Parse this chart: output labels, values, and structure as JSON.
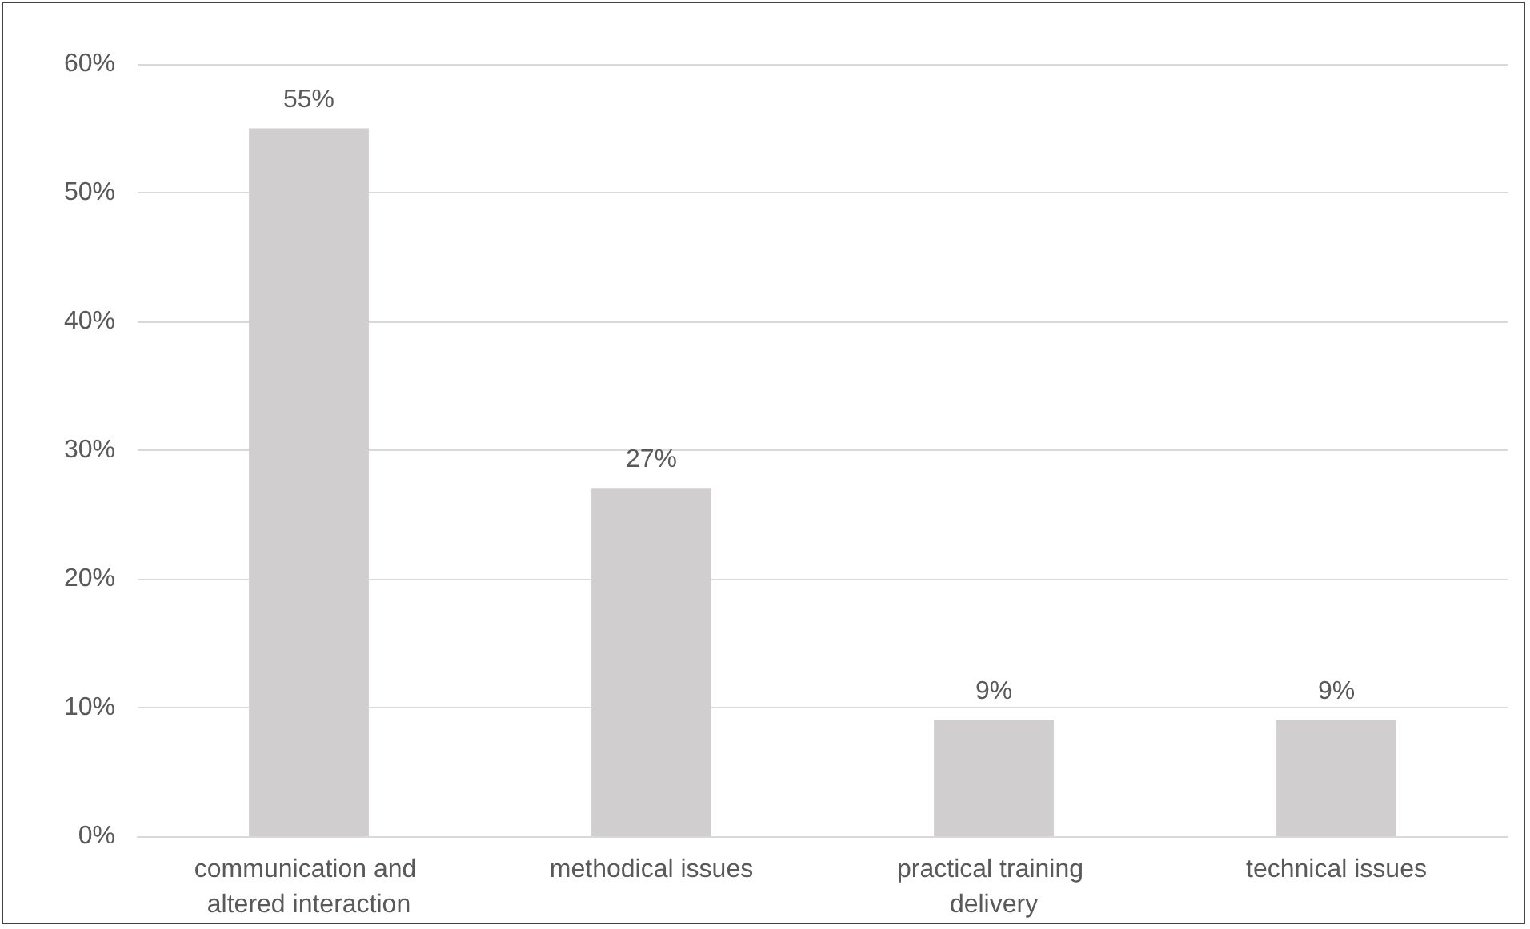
{
  "chart_data": {
    "type": "bar",
    "categories": [
      "communication and altered interaction",
      "methodical issues",
      "practical training delivery",
      "technical issues"
    ],
    "values": [
      55,
      27,
      9,
      9
    ],
    "color": "#d0cece",
    "value_labels": [
      "55%",
      "27%",
      "9%",
      "9%"
    ],
    "ylim": [
      0,
      60
    ],
    "yticks": [
      {
        "value": 0,
        "label": "0%"
      },
      {
        "value": 10,
        "label": "10%"
      },
      {
        "value": 20,
        "label": "20%"
      },
      {
        "value": 30,
        "label": "30%"
      },
      {
        "value": 40,
        "label": "40%"
      },
      {
        "value": 50,
        "label": "50%"
      },
      {
        "value": 60,
        "label": "60%"
      }
    ],
    "grid": "y"
  }
}
